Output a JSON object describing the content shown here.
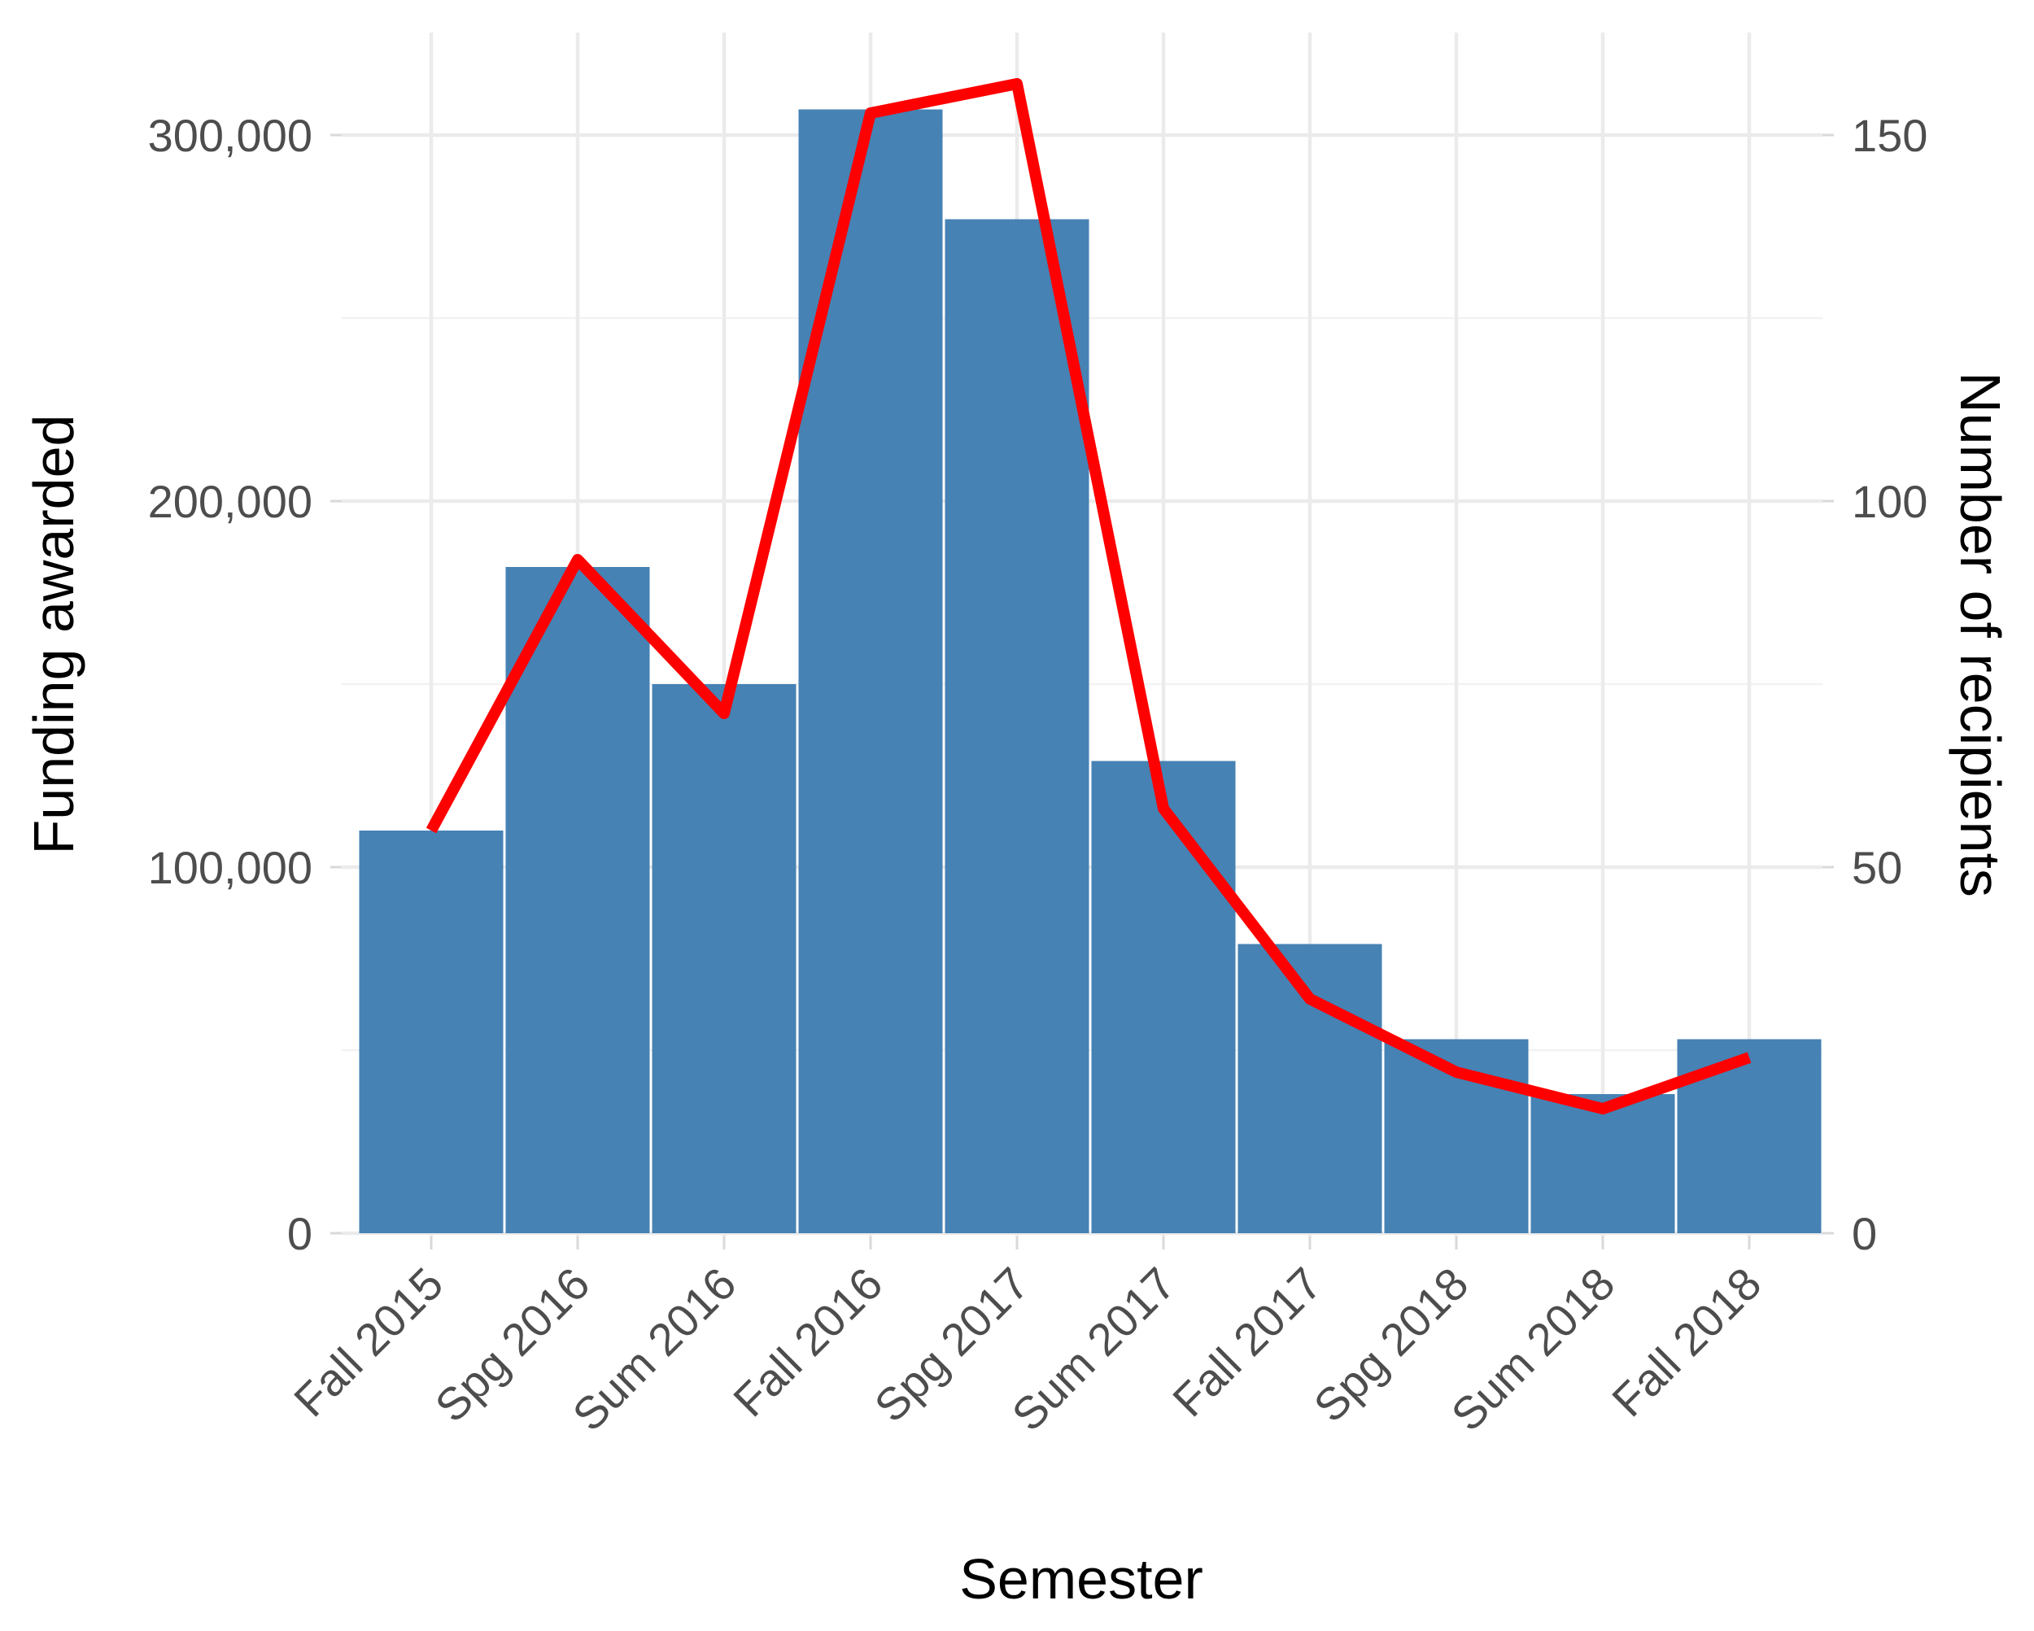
{
  "chart_data": {
    "type": "bar",
    "categories": [
      "Fall 2015",
      "Spg 2016",
      "Sum 2016",
      "Fall 2016",
      "Spg 2017",
      "Sum 2017",
      "Fall 2017",
      "Spg 2018",
      "Sum 2018",
      "Fall 2018"
    ],
    "series": [
      {
        "type": "bar",
        "axis": "left",
        "color": "#4682B4",
        "values": [
          110000,
          182000,
          150000,
          307000,
          277000,
          129000,
          79000,
          53000,
          38000,
          53000
        ]
      },
      {
        "type": "line",
        "axis": "right",
        "color": "#FF0000",
        "values": [
          55,
          92,
          71,
          153,
          157,
          58,
          32,
          22,
          17,
          24
        ]
      }
    ],
    "xlabel": "Semester",
    "ylabel": "Funding awarded",
    "y2label": "Number of recipients",
    "ylim": [
      0,
      320000
    ],
    "y2lim": [
      0,
      160
    ],
    "yticks": [
      0,
      100000,
      200000,
      300000
    ],
    "ytick_labels": [
      "0",
      "100,000",
      "200,000",
      "300,000"
    ],
    "y2ticks": [
      0,
      50,
      100,
      150
    ],
    "y2tick_labels": [
      "0",
      "50",
      "100",
      "150"
    ],
    "grid": true,
    "legend": "none"
  }
}
